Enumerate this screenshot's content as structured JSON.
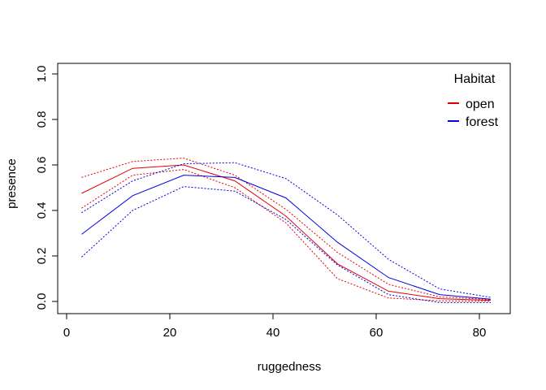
{
  "chart_data": {
    "type": "line",
    "title": "",
    "xlabel": "ruggedness",
    "ylabel": "presence",
    "xlim": [
      0,
      85
    ],
    "ylim": [
      0,
      1
    ],
    "x_ticks": [
      0,
      20,
      40,
      60,
      80
    ],
    "y_ticks": [
      0.0,
      0.2,
      0.4,
      0.6,
      0.8,
      1.0
    ],
    "x_tick_labels": [
      "0",
      "20",
      "40",
      "60",
      "80"
    ],
    "y_tick_labels": [
      "0.0",
      "0.2",
      "0.4",
      "0.6",
      "0.8",
      "1.0"
    ],
    "grid": false,
    "legend": {
      "title": "Habitat",
      "position": "top-right",
      "entries": [
        {
          "label": "open",
          "color": "#e00000"
        },
        {
          "label": "forest",
          "color": "#0000e0"
        }
      ]
    },
    "x": [
      2.9,
      12.8,
      22.7,
      32.6,
      42.5,
      52.5,
      62.4,
      72.3,
      82.2
    ],
    "series": [
      {
        "name": "open",
        "color": "#e00000",
        "mean": [
          0.475,
          0.585,
          0.6,
          0.53,
          0.375,
          0.165,
          0.045,
          0.012,
          0.005
        ],
        "upper": [
          0.545,
          0.615,
          0.63,
          0.555,
          0.405,
          0.215,
          0.075,
          0.02,
          0.008
        ],
        "lower": [
          0.41,
          0.555,
          0.58,
          0.5,
          0.345,
          0.1,
          0.015,
          0.003,
          0.001
        ]
      },
      {
        "name": "forest",
        "color": "#0000e0",
        "mean": [
          0.295,
          0.465,
          0.555,
          0.545,
          0.455,
          0.26,
          0.105,
          0.03,
          0.01
        ],
        "upper": [
          0.39,
          0.53,
          0.605,
          0.61,
          0.54,
          0.38,
          0.185,
          0.055,
          0.018
        ],
        "lower": [
          0.195,
          0.4,
          0.505,
          0.485,
          0.36,
          0.16,
          0.03,
          -0.005,
          -0.005
        ]
      }
    ]
  }
}
